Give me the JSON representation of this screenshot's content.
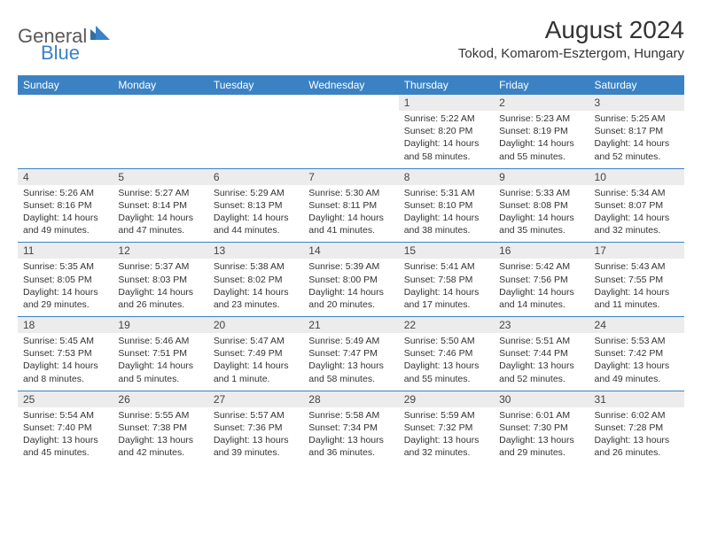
{
  "brand": {
    "text1": "General",
    "text2": "Blue"
  },
  "title": "August 2024",
  "location": "Tokod, Komarom-Esztergom, Hungary",
  "colors": {
    "header_bg": "#3b82c4",
    "header_text": "#ffffff",
    "daynum_bg": "#ececec",
    "border": "#3b82c4",
    "body_text": "#333333"
  },
  "dayNames": [
    "Sunday",
    "Monday",
    "Tuesday",
    "Wednesday",
    "Thursday",
    "Friday",
    "Saturday"
  ],
  "weeks": [
    [
      null,
      null,
      null,
      null,
      {
        "n": "1",
        "sr": "5:22 AM",
        "ss": "8:20 PM",
        "dl": "14 hours and 58 minutes."
      },
      {
        "n": "2",
        "sr": "5:23 AM",
        "ss": "8:19 PM",
        "dl": "14 hours and 55 minutes."
      },
      {
        "n": "3",
        "sr": "5:25 AM",
        "ss": "8:17 PM",
        "dl": "14 hours and 52 minutes."
      }
    ],
    [
      {
        "n": "4",
        "sr": "5:26 AM",
        "ss": "8:16 PM",
        "dl": "14 hours and 49 minutes."
      },
      {
        "n": "5",
        "sr": "5:27 AM",
        "ss": "8:14 PM",
        "dl": "14 hours and 47 minutes."
      },
      {
        "n": "6",
        "sr": "5:29 AM",
        "ss": "8:13 PM",
        "dl": "14 hours and 44 minutes."
      },
      {
        "n": "7",
        "sr": "5:30 AM",
        "ss": "8:11 PM",
        "dl": "14 hours and 41 minutes."
      },
      {
        "n": "8",
        "sr": "5:31 AM",
        "ss": "8:10 PM",
        "dl": "14 hours and 38 minutes."
      },
      {
        "n": "9",
        "sr": "5:33 AM",
        "ss": "8:08 PM",
        "dl": "14 hours and 35 minutes."
      },
      {
        "n": "10",
        "sr": "5:34 AM",
        "ss": "8:07 PM",
        "dl": "14 hours and 32 minutes."
      }
    ],
    [
      {
        "n": "11",
        "sr": "5:35 AM",
        "ss": "8:05 PM",
        "dl": "14 hours and 29 minutes."
      },
      {
        "n": "12",
        "sr": "5:37 AM",
        "ss": "8:03 PM",
        "dl": "14 hours and 26 minutes."
      },
      {
        "n": "13",
        "sr": "5:38 AM",
        "ss": "8:02 PM",
        "dl": "14 hours and 23 minutes."
      },
      {
        "n": "14",
        "sr": "5:39 AM",
        "ss": "8:00 PM",
        "dl": "14 hours and 20 minutes."
      },
      {
        "n": "15",
        "sr": "5:41 AM",
        "ss": "7:58 PM",
        "dl": "14 hours and 17 minutes."
      },
      {
        "n": "16",
        "sr": "5:42 AM",
        "ss": "7:56 PM",
        "dl": "14 hours and 14 minutes."
      },
      {
        "n": "17",
        "sr": "5:43 AM",
        "ss": "7:55 PM",
        "dl": "14 hours and 11 minutes."
      }
    ],
    [
      {
        "n": "18",
        "sr": "5:45 AM",
        "ss": "7:53 PM",
        "dl": "14 hours and 8 minutes."
      },
      {
        "n": "19",
        "sr": "5:46 AM",
        "ss": "7:51 PM",
        "dl": "14 hours and 5 minutes."
      },
      {
        "n": "20",
        "sr": "5:47 AM",
        "ss": "7:49 PM",
        "dl": "14 hours and 1 minute."
      },
      {
        "n": "21",
        "sr": "5:49 AM",
        "ss": "7:47 PM",
        "dl": "13 hours and 58 minutes."
      },
      {
        "n": "22",
        "sr": "5:50 AM",
        "ss": "7:46 PM",
        "dl": "13 hours and 55 minutes."
      },
      {
        "n": "23",
        "sr": "5:51 AM",
        "ss": "7:44 PM",
        "dl": "13 hours and 52 minutes."
      },
      {
        "n": "24",
        "sr": "5:53 AM",
        "ss": "7:42 PM",
        "dl": "13 hours and 49 minutes."
      }
    ],
    [
      {
        "n": "25",
        "sr": "5:54 AM",
        "ss": "7:40 PM",
        "dl": "13 hours and 45 minutes."
      },
      {
        "n": "26",
        "sr": "5:55 AM",
        "ss": "7:38 PM",
        "dl": "13 hours and 42 minutes."
      },
      {
        "n": "27",
        "sr": "5:57 AM",
        "ss": "7:36 PM",
        "dl": "13 hours and 39 minutes."
      },
      {
        "n": "28",
        "sr": "5:58 AM",
        "ss": "7:34 PM",
        "dl": "13 hours and 36 minutes."
      },
      {
        "n": "29",
        "sr": "5:59 AM",
        "ss": "7:32 PM",
        "dl": "13 hours and 32 minutes."
      },
      {
        "n": "30",
        "sr": "6:01 AM",
        "ss": "7:30 PM",
        "dl": "13 hours and 29 minutes."
      },
      {
        "n": "31",
        "sr": "6:02 AM",
        "ss": "7:28 PM",
        "dl": "13 hours and 26 minutes."
      }
    ]
  ],
  "labels": {
    "sunrise": "Sunrise:",
    "sunset": "Sunset:",
    "daylight": "Daylight:"
  }
}
